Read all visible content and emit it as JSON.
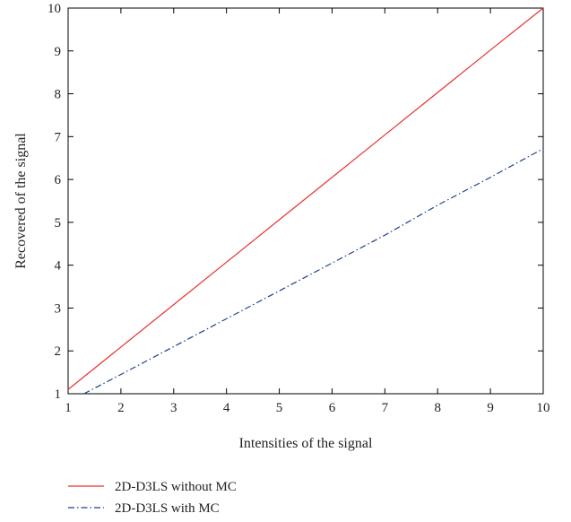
{
  "chart_data": {
    "type": "line",
    "xlabel": "Intensities of the signal",
    "ylabel": "Recovered of the signal",
    "xlim": [
      1,
      10
    ],
    "ylim": [
      1,
      10
    ],
    "xticks": [
      1,
      2,
      3,
      4,
      5,
      6,
      7,
      8,
      9,
      10
    ],
    "yticks": [
      1,
      2,
      3,
      4,
      5,
      6,
      7,
      8,
      9,
      10
    ],
    "grid": false,
    "legend_position": "below",
    "series": [
      {
        "name": "2D-D3LS without MC",
        "color": "#e8322e",
        "style": "solid",
        "x": [
          1,
          2,
          3,
          4,
          5,
          6,
          7,
          8,
          9,
          10
        ],
        "y": [
          1.1,
          2.09,
          3.08,
          4.07,
          5.06,
          6.05,
          7.04,
          8.03,
          9.02,
          10.0
        ]
      },
      {
        "name": "2D-D3LS with MC",
        "color": "#1f3f8f",
        "style": "dashdot",
        "x": [
          1.3,
          2,
          3,
          4,
          5,
          6,
          7,
          8,
          9,
          10
        ],
        "y": [
          1.0,
          1.45,
          2.1,
          2.75,
          3.4,
          4.05,
          4.7,
          5.4,
          6.05,
          6.72
        ]
      }
    ]
  }
}
